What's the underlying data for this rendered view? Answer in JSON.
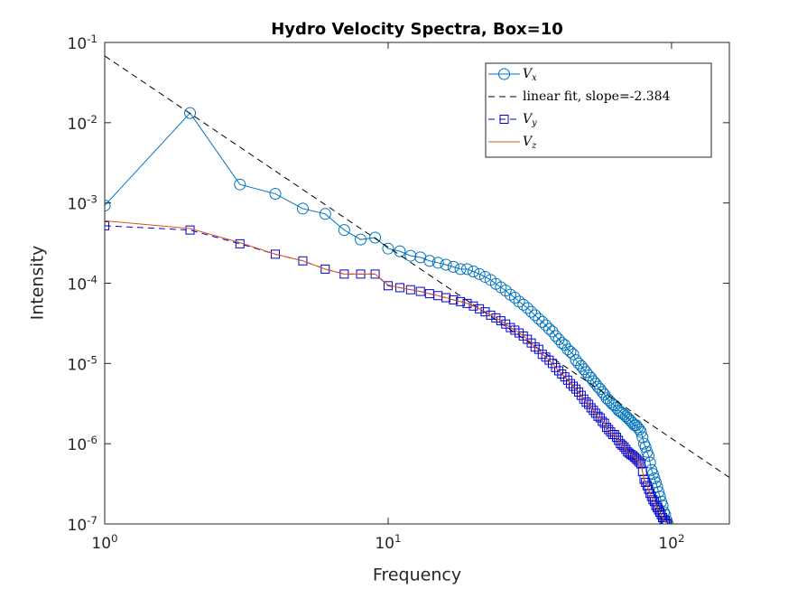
{
  "chart_data": {
    "type": "line",
    "title": "Hydro Velocity Spectra, Box=10",
    "x_label": "Frequency",
    "y_label": "Intensity",
    "x_log": true,
    "y_log": true,
    "grid": false,
    "legend_position": "upper right",
    "xlim": [
      1,
      160
    ],
    "ylim": [
      1e-07,
      0.1
    ],
    "xticks": [
      {
        "value": 1,
        "label": "10^0"
      },
      {
        "value": 10,
        "label": "10^1"
      },
      {
        "value": 100,
        "label": "10^2"
      }
    ],
    "yticks": [
      {
        "value": 1e-07,
        "label": "10^-7"
      },
      {
        "value": 1e-06,
        "label": "10^-6"
      },
      {
        "value": 1e-05,
        "label": "10^-5"
      },
      {
        "value": 0.0001,
        "label": "10^-4"
      },
      {
        "value": 0.001,
        "label": "10^-3"
      },
      {
        "value": 0.01,
        "label": "10^-2"
      },
      {
        "value": 0.1,
        "label": "10^-1"
      }
    ],
    "series": [
      {
        "name": "V_x",
        "color": "#0072bd",
        "line_style": "solid",
        "marker": "circle",
        "x": [
          1,
          2,
          3,
          4,
          5,
          6,
          7,
          8,
          9,
          10,
          11,
          12,
          13,
          14,
          15,
          16,
          17,
          18,
          19,
          20,
          21,
          22,
          23,
          24,
          25,
          26,
          27,
          28,
          29,
          30,
          31,
          32,
          33,
          34,
          35,
          36,
          37,
          38,
          39,
          40,
          41,
          42,
          43,
          44,
          45,
          46,
          47,
          48,
          49,
          50,
          51,
          52,
          53,
          54,
          55,
          56,
          57,
          58,
          59,
          60,
          61,
          62,
          63,
          64,
          65,
          66,
          67,
          68,
          69,
          70,
          71,
          72,
          73,
          74,
          75,
          76,
          77,
          78,
          79,
          80,
          81,
          82,
          83,
          84,
          85,
          86,
          87,
          88,
          89,
          90,
          91,
          92,
          93,
          94,
          95,
          96,
          97
        ],
        "values": [
          0.00093,
          0.0132,
          0.0017,
          0.0013,
          0.00085,
          0.00073,
          0.00046,
          0.00035,
          0.00037,
          0.00027,
          0.00025,
          0.00022,
          0.00021,
          0.00019,
          0.00018,
          0.00017,
          0.00016,
          0.00015,
          0.00015,
          0.00014,
          0.00013,
          0.00012,
          0.00011,
          9.8e-05,
          8.9e-05,
          8.1e-05,
          7.2e-05,
          6.6e-05,
          5.9e-05,
          5.4e-05,
          4.9e-05,
          4.4e-05,
          4e-05,
          3.6e-05,
          3.3e-05,
          3e-05,
          2.7e-05,
          2.5e-05,
          2.2e-05,
          2e-05,
          1.8e-05,
          1.7e-05,
          1.5e-05,
          1.4e-05,
          1.3e-05,
          1.1e-05,
          1e-05,
          9.3e-06,
          8.5e-06,
          7.8e-06,
          7.1e-06,
          6.6e-06,
          6e-06,
          5.6e-06,
          5.1e-06,
          4.8e-06,
          4.4e-06,
          4.1e-06,
          3.7e-06,
          3.5e-06,
          3.3e-06,
          3.1e-06,
          3e-06,
          2.8e-06,
          2.6e-06,
          2.5e-06,
          2.4e-06,
          2.3e-06,
          2.2e-06,
          2.1e-06,
          2e-06,
          1.9e-06,
          1.8e-06,
          1.7e-06,
          1.7e-06,
          1.6e-06,
          1.5e-06,
          1.4e-06,
          1.2e-06,
          1e-06,
          9.1e-07,
          7.9e-07,
          7.1e-07,
          5.8e-07,
          4.7e-07,
          4.2e-07,
          3.7e-07,
          3.3e-07,
          2.9e-07,
          2.5e-07,
          2.2e-07,
          1.9e-07,
          1.7e-07,
          1.4e-07,
          1.3e-07,
          1.1e-07,
          1e-07
        ]
      },
      {
        "name": "linear fit, slope=-2.384",
        "color": "#000000",
        "line_style": "dashed",
        "marker": "none",
        "x": [
          1,
          160
        ],
        "values": [
          0.068,
          3.8e-07
        ]
      },
      {
        "name": "V_y",
        "color": "#0000cc",
        "line_style": "dashed",
        "marker": "square",
        "x": [
          1,
          2,
          3,
          4,
          5,
          6,
          7,
          8,
          9,
          10,
          11,
          12,
          13,
          14,
          15,
          16,
          17,
          18,
          19,
          20,
          21,
          22,
          23,
          24,
          25,
          26,
          27,
          28,
          29,
          30,
          31,
          32,
          33,
          34,
          35,
          36,
          37,
          38,
          39,
          40,
          41,
          42,
          43,
          44,
          45,
          46,
          47,
          48,
          49,
          50,
          51,
          52,
          53,
          54,
          55,
          56,
          57,
          58,
          59,
          60,
          61,
          62,
          63,
          64,
          65,
          66,
          67,
          68,
          69,
          70,
          71,
          72,
          73,
          74,
          75,
          76,
          77,
          78,
          79,
          80,
          81,
          82,
          83,
          84,
          85,
          86,
          87,
          88,
          89,
          90,
          91,
          92,
          93,
          94,
          95,
          96
        ],
        "values": [
          0.00052,
          0.00046,
          0.00031,
          0.00023,
          0.00019,
          0.00015,
          0.00013,
          0.00013,
          0.00013,
          9.3e-05,
          8.8e-05,
          8.3e-05,
          7.9e-05,
          7.4e-05,
          7e-05,
          6.6e-05,
          6.2e-05,
          5.9e-05,
          5.6e-05,
          5.2e-05,
          4.8e-05,
          4.4e-05,
          4e-05,
          3.7e-05,
          3.4e-05,
          3.1e-05,
          2.8e-05,
          2.6e-05,
          2.4e-05,
          2.2e-05,
          2e-05,
          1.8e-05,
          1.6e-05,
          1.5e-05,
          1.3e-05,
          1.2e-05,
          1.1e-05,
          1e-05,
          8.9e-06,
          8.1e-06,
          7.4e-06,
          6.8e-06,
          6.2e-06,
          5.6e-06,
          5.2e-06,
          4.8e-06,
          4.4e-06,
          4e-06,
          3.6e-06,
          3.3e-06,
          3.1e-06,
          2.8e-06,
          2.6e-06,
          2.4e-06,
          2.2e-06,
          2.1e-06,
          1.9e-06,
          1.8e-06,
          1.6e-06,
          1.5e-06,
          1.4e-06,
          1.3e-06,
          1.3e-06,
          1.2e-06,
          1.1e-06,
          1e-06,
          9.6e-07,
          9.1e-07,
          8.5e-07,
          7.9e-07,
          7.6e-07,
          7.3e-07,
          7.1e-07,
          6.8e-07,
          6.5e-07,
          6.2e-07,
          5.9e-07,
          5.6e-07,
          4.5e-07,
          3.6e-07,
          3.3e-07,
          3e-07,
          2.7e-07,
          2.4e-07,
          2.2e-07,
          2e-07,
          1.9e-07,
          1.7e-07,
          1.6e-07,
          1.5e-07,
          1.4e-07,
          1.3e-07,
          1.2e-07,
          1.1e-07,
          1.1e-07,
          1e-07
        ]
      },
      {
        "name": "V_z",
        "color": "#d95319",
        "line_style": "solid",
        "marker": "none",
        "x": [
          1,
          2,
          3,
          4,
          5,
          6,
          7,
          8,
          9,
          10,
          11,
          12,
          13,
          14,
          15,
          16,
          17,
          18,
          19,
          20,
          21,
          22,
          23,
          24,
          25,
          26,
          27,
          28,
          29,
          30,
          31,
          32,
          33,
          34,
          35,
          36,
          37,
          38,
          39,
          40,
          41,
          42,
          43,
          44,
          45,
          46,
          47,
          48,
          49,
          50,
          51,
          52,
          53,
          54,
          55,
          56,
          57,
          58,
          59,
          60,
          61,
          62,
          63,
          64,
          65,
          66,
          67,
          68,
          69,
          70,
          71,
          72,
          73,
          74,
          75,
          76,
          77,
          78,
          79,
          80,
          81,
          82,
          83,
          84,
          85,
          86,
          87,
          88,
          89,
          90,
          91,
          92,
          93,
          94,
          95,
          96
        ],
        "values": [
          0.0006,
          0.00048,
          0.00032,
          0.00023,
          0.00019,
          0.00015,
          0.00013,
          0.00013,
          0.00013,
          9.5e-05,
          8.8e-05,
          8.3e-05,
          7.9e-05,
          7.4e-05,
          7e-05,
          6.6e-05,
          6.2e-05,
          5.9e-05,
          5.6e-05,
          5.2e-05,
          4.8e-05,
          4.4e-05,
          4e-05,
          3.7e-05,
          3.4e-05,
          3.1e-05,
          2.8e-05,
          2.6e-05,
          2.4e-05,
          2.2e-05,
          2e-05,
          1.8e-05,
          1.6e-05,
          1.5e-05,
          1.3e-05,
          1.2e-05,
          1.1e-05,
          1e-05,
          8.9e-06,
          8.1e-06,
          7.4e-06,
          6.8e-06,
          6.2e-06,
          5.6e-06,
          5.2e-06,
          4.8e-06,
          4.4e-06,
          4e-06,
          3.6e-06,
          3.3e-06,
          3.1e-06,
          2.8e-06,
          2.6e-06,
          2.4e-06,
          2.2e-06,
          2.1e-06,
          1.9e-06,
          1.8e-06,
          1.6e-06,
          1.5e-06,
          1.4e-06,
          1.3e-06,
          1.3e-06,
          1.2e-06,
          1.1e-06,
          1e-06,
          9.6e-07,
          9.1e-07,
          8.5e-07,
          7.9e-07,
          7.6e-07,
          7.3e-07,
          7.1e-07,
          6.8e-07,
          6.5e-07,
          6.2e-07,
          5.9e-07,
          5.6e-07,
          4.5e-07,
          3.6e-07,
          3.3e-07,
          3e-07,
          2.7e-07,
          2.4e-07,
          2.2e-07,
          2e-07,
          1.9e-07,
          1.7e-07,
          1.6e-07,
          1.5e-07,
          1.4e-07,
          1.3e-07,
          1.2e-07,
          1.1e-07,
          1.1e-07,
          1e-07
        ]
      }
    ]
  }
}
